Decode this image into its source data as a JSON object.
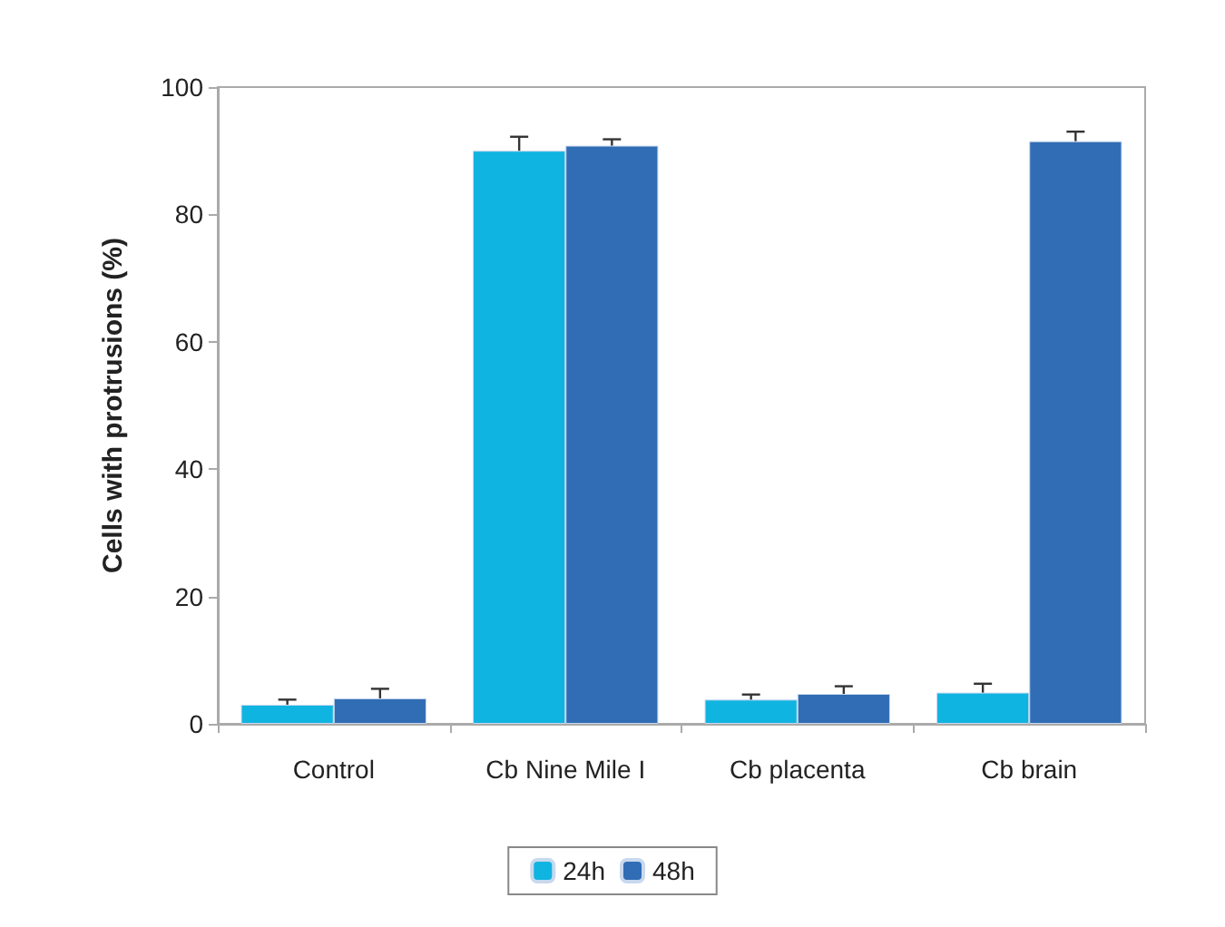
{
  "chart_data": {
    "type": "bar",
    "ylabel": "Cells with protrusions (%)",
    "categories": [
      "Control",
      "Cb Nine Mile I",
      "Cb placenta",
      "Cb brain"
    ],
    "series": [
      {
        "name": "24h",
        "color": "#10b4e0",
        "values": [
          3,
          90,
          3.8,
          4.9
        ],
        "errors": [
          0.8,
          2.2,
          0.8,
          1.4
        ]
      },
      {
        "name": "48h",
        "color": "#306db4",
        "values": [
          4,
          90.8,
          4.7,
          91.5
        ],
        "errors": [
          1.5,
          1,
          1.2,
          1.5
        ]
      }
    ],
    "ylim": [
      0,
      100
    ],
    "yticks": [
      0,
      20,
      40,
      60,
      80,
      100
    ],
    "grid": false,
    "legend": "bottom"
  }
}
